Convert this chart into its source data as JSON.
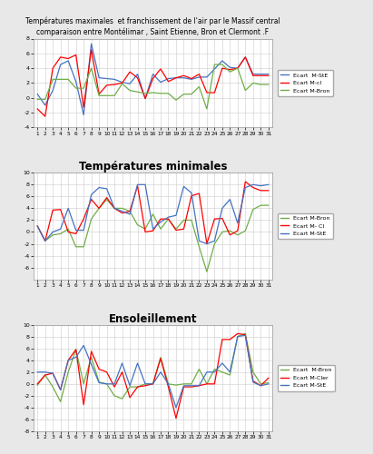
{
  "x": [
    1,
    2,
    3,
    4,
    5,
    6,
    7,
    8,
    9,
    10,
    11,
    12,
    13,
    14,
    15,
    16,
    17,
    18,
    19,
    20,
    21,
    22,
    23,
    24,
    25,
    26,
    27,
    28,
    29,
    30,
    31
  ],
  "chart1": {
    "title_line1": "Températures maximales  et franchissement de l'air par le Massif central",
    "title_line2": "comparaison entre Montélimar , Saint Etienne, Bron et Clermont .F",
    "ylim": [
      -4,
      8
    ],
    "yticks": [
      -4,
      -2,
      0,
      2,
      4,
      6,
      8
    ],
    "series": {
      "Ecart  M-StE": {
        "color": "#4472C4",
        "data": [
          0.5,
          -1.0,
          1.0,
          4.5,
          5.0,
          2.2,
          -2.3,
          7.3,
          2.7,
          2.6,
          2.5,
          2.1,
          1.9,
          3.2,
          -0.1,
          3.2,
          2.1,
          2.6,
          2.7,
          2.7,
          2.5,
          2.8,
          2.8,
          3.9,
          5.0,
          4.1,
          4.0,
          5.5,
          3.2,
          3.2,
          3.2
        ]
      },
      "Ecart M-cl": {
        "color": "#FF0000",
        "data": [
          -1.5,
          -2.5,
          4.0,
          5.5,
          5.3,
          5.8,
          -1.3,
          6.5,
          0.5,
          1.7,
          1.8,
          2.0,
          3.5,
          2.7,
          -0.1,
          2.6,
          3.9,
          2.2,
          2.7,
          3.0,
          2.6,
          3.2,
          0.7,
          0.7,
          4.0,
          3.8,
          4.0,
          5.5,
          3.0,
          3.0,
          3.0
        ]
      },
      "Ecart M-Bron": {
        "color": "#70AD47",
        "data": [
          -0.2,
          -0.2,
          2.5,
          2.5,
          2.5,
          1.3,
          1.3,
          4.0,
          0.3,
          0.3,
          0.3,
          1.9,
          1.0,
          0.8,
          0.6,
          0.7,
          0.6,
          0.6,
          -0.3,
          0.5,
          0.5,
          1.5,
          -1.5,
          4.5,
          4.5,
          3.5,
          4.0,
          1.0,
          2.0,
          1.8,
          1.8
        ]
      }
    }
  },
  "chart2": {
    "title": "Températures minimales",
    "ylim": [
      -8,
      10
    ],
    "yticks": [
      -6,
      -4,
      -2,
      0,
      2,
      4,
      6,
      8,
      10
    ],
    "series": {
      "Ecart M-Bron": {
        "color": "#70AD47",
        "data": [
          1.0,
          -1.5,
          -0.5,
          -0.3,
          0.5,
          -2.5,
          -2.5,
          2.2,
          4.0,
          5.5,
          4.0,
          4.0,
          3.5,
          1.2,
          0.5,
          3.0,
          0.5,
          2.2,
          0.5,
          2.0,
          2.0,
          -2.5,
          -6.7,
          -2.0,
          0.0,
          0.2,
          -0.5,
          0.2,
          3.8,
          4.5,
          4.5
        ]
      },
      "Ecart M- Cl": {
        "color": "#FF0000",
        "data": [
          1.0,
          -1.5,
          3.7,
          3.8,
          0.0,
          -0.3,
          2.2,
          5.5,
          4.0,
          5.8,
          4.0,
          3.2,
          3.5,
          7.8,
          0.0,
          0.2,
          2.2,
          2.2,
          0.3,
          0.5,
          6.1,
          6.5,
          -2.0,
          2.2,
          2.3,
          -0.5,
          0.2,
          8.5,
          7.5,
          7.0,
          7.0
        ]
      },
      "Ecart M-StE": {
        "color": "#4472C4",
        "data": [
          1.0,
          -1.5,
          0.0,
          0.5,
          4.0,
          0.3,
          0.3,
          6.3,
          7.5,
          7.3,
          4.0,
          3.5,
          3.0,
          8.0,
          8.0,
          0.5,
          1.7,
          2.5,
          2.8,
          7.7,
          6.6,
          -1.5,
          -2.0,
          -1.5,
          4.0,
          5.5,
          1.5,
          7.5,
          8.0,
          7.8,
          8.0
        ]
      }
    }
  },
  "chart3": {
    "title": "Ensoleillement",
    "ylim": [
      -8,
      10
    ],
    "yticks": [
      -8,
      -6,
      -4,
      -2,
      0,
      2,
      4,
      6,
      8,
      10
    ],
    "series": {
      "Ecart  M-Bron": {
        "color": "#70AD47",
        "data": [
          -0.2,
          1.5,
          -0.5,
          -3.0,
          2.0,
          5.8,
          0.0,
          4.5,
          0.3,
          0.0,
          -2.0,
          -2.5,
          -0.5,
          -0.5,
          0.0,
          0.0,
          4.5,
          0.0,
          -0.2,
          0.0,
          0.0,
          2.5,
          0.0,
          2.5,
          2.0,
          1.5,
          8.0,
          8.5,
          2.0,
          0.0,
          0.2
        ]
      },
      "Ecart M-Cler": {
        "color": "#FF0000",
        "data": [
          0.0,
          1.5,
          1.8,
          -1.0,
          4.0,
          5.8,
          -3.5,
          5.5,
          2.5,
          2.0,
          -0.5,
          2.0,
          -2.3,
          -0.5,
          -0.3,
          0.0,
          4.3,
          -0.5,
          -5.8,
          -0.5,
          -0.5,
          -0.3,
          0.0,
          0.0,
          7.5,
          7.5,
          8.5,
          8.3,
          0.5,
          -0.3,
          1.0
        ]
      },
      "Ecart M-StE": {
        "color": "#4472C4",
        "data": [
          2.0,
          2.0,
          1.8,
          -1.0,
          4.0,
          4.5,
          6.5,
          3.3,
          0.2,
          0.0,
          0.0,
          3.5,
          -0.3,
          3.5,
          0.0,
          0.0,
          2.0,
          0.0,
          -4.0,
          -0.3,
          -0.3,
          -0.3,
          2.0,
          2.0,
          3.5,
          2.0,
          8.0,
          8.2,
          0.3,
          -0.3,
          0.0
        ]
      }
    }
  },
  "fig_bg": "#E8E8E8",
  "plot_bg": "#FFFFFF"
}
